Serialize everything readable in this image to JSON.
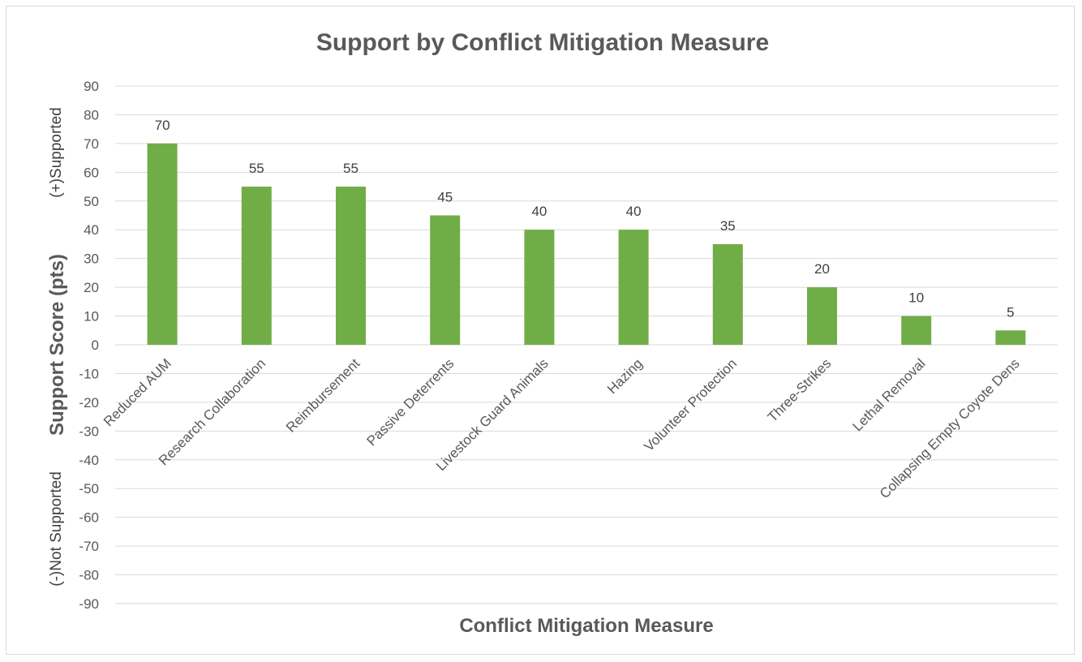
{
  "chart_data": {
    "type": "bar",
    "title": "Support by Conflict Mitigation Measure",
    "xlabel": "Conflict Mitigation Measure",
    "ylabel": "Support Score (pts)",
    "ylabel_positive": "(+)Supported",
    "ylabel_negative": "(-)Not Supported",
    "categories": [
      "Reduced AUM",
      "Research Collaboration",
      "Reimbursement",
      "Passive Deterrents",
      "Livestock Guard Animals",
      "Hazing",
      "Volunteer Protection",
      "Three-Strikes",
      "Lethal Removal",
      "Collapsing Empty Coyote Dens"
    ],
    "values": [
      70,
      55,
      55,
      45,
      40,
      40,
      35,
      20,
      10,
      5
    ],
    "ylim": [
      -90,
      90
    ],
    "ytick_step": 10,
    "grid": true,
    "legend": "none",
    "bar_color": "#70ad47",
    "grid_color": "#d9d9d9"
  }
}
